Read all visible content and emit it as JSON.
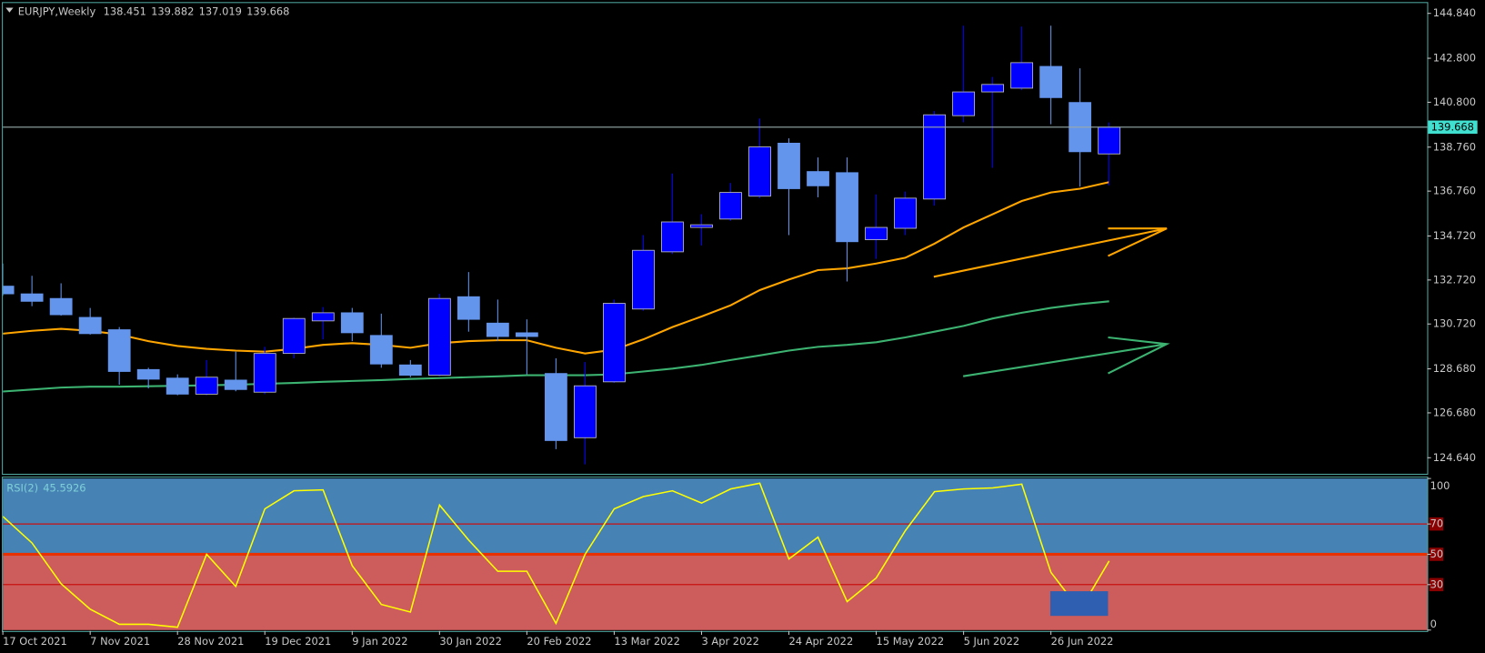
{
  "chart_data": [
    {
      "type": "candlestick",
      "title": "EURJPY,Weekly",
      "categories": [
        "17 Oct 2021",
        null,
        null,
        "7 Nov 2021",
        null,
        null,
        "28 Nov 2021",
        null,
        null,
        "19 Dec 2021",
        null,
        null,
        "9 Jan 2022",
        null,
        null,
        "30 Jan 2022",
        null,
        null,
        "20 Feb 2022",
        null,
        null,
        "13 Mar 2022",
        null,
        null,
        "3 Apr 2022",
        null,
        null,
        "24 Apr 2022",
        null,
        null,
        "15 May 2022",
        null,
        null,
        "5 Jun 2022",
        null,
        null,
        "26 Jun 2022",
        null,
        null
      ],
      "open": [
        132.44,
        132.09,
        131.88,
        131.02,
        130.46,
        128.65,
        128.26,
        127.53,
        128.17,
        127.62,
        129.38,
        130.86,
        131.23,
        130.2,
        128.86,
        128.39,
        131.96,
        130.76,
        130.32,
        128.47,
        125.55,
        128.09,
        131.4,
        134.0,
        135.11,
        135.49,
        136.53,
        138.94,
        137.65,
        137.6,
        134.55,
        135.07,
        136.4,
        140.19,
        141.27,
        141.44,
        142.43,
        140.79,
        138.451
      ],
      "high": [
        133.47,
        132.91,
        132.57,
        131.45,
        130.58,
        128.73,
        128.43,
        129.08,
        129.46,
        129.68,
        131.01,
        131.49,
        131.45,
        131.19,
        129.08,
        132.09,
        133.08,
        131.83,
        130.93,
        129.16,
        128.99,
        131.83,
        134.76,
        137.56,
        135.71,
        137.13,
        140.06,
        139.16,
        138.29,
        138.29,
        136.61,
        136.74,
        140.4,
        144.28,
        141.95,
        144.24,
        144.28,
        142.34,
        139.882
      ],
      "low": [
        132.0,
        131.53,
        131.1,
        130.24,
        127.96,
        127.79,
        127.48,
        127.48,
        127.66,
        127.53,
        129.16,
        130.02,
        129.94,
        128.73,
        128.3,
        128.34,
        130.37,
        129.94,
        128.43,
        125.03,
        124.34,
        128.04,
        131.32,
        133.9,
        134.29,
        135.41,
        136.44,
        134.76,
        136.48,
        132.65,
        133.68,
        134.76,
        136.1,
        139.89,
        137.82,
        141.35,
        139.8,
        136.96,
        137.019
      ],
      "close": [
        132.09,
        131.75,
        131.14,
        130.28,
        128.56,
        128.21,
        127.53,
        128.3,
        127.74,
        129.38,
        130.97,
        131.23,
        130.32,
        128.9,
        128.39,
        131.88,
        130.93,
        130.15,
        130.15,
        125.42,
        127.91,
        131.66,
        134.07,
        135.36,
        135.23,
        136.7,
        138.77,
        136.87,
        137.0,
        134.46,
        135.11,
        136.44,
        140.23,
        141.27,
        141.61,
        142.6,
        141.01,
        138.55,
        139.668
      ],
      "up_color": "#0000ff",
      "down_color": "#6495ed",
      "series": [
        {
          "color": "#ffa500",
          "values": [
            130.28,
            130.41,
            130.5,
            130.41,
            130.24,
            129.94,
            129.72,
            129.59,
            129.51,
            129.46,
            129.59,
            129.77,
            129.85,
            129.77,
            129.64,
            129.85,
            129.94,
            129.98,
            129.98,
            129.64,
            129.38,
            129.55,
            130.02,
            130.58,
            131.06,
            131.57,
            132.26,
            132.74,
            133.17,
            133.25,
            133.47,
            133.73,
            134.37,
            135.11,
            135.71,
            136.31,
            136.7,
            136.87,
            137.17
          ]
        },
        {
          "color": "#3cb371",
          "values": [
            127.65,
            127.74,
            127.83,
            127.87,
            127.87,
            127.89,
            127.91,
            127.93,
            127.96,
            128.0,
            128.04,
            128.09,
            128.13,
            128.17,
            128.22,
            128.26,
            128.3,
            128.34,
            128.39,
            128.39,
            128.39,
            128.43,
            128.56,
            128.69,
            128.86,
            129.08,
            129.29,
            129.51,
            129.68,
            129.77,
            129.89,
            130.11,
            130.37,
            130.63,
            130.97,
            131.23,
            131.45,
            131.62,
            131.75
          ]
        }
      ],
      "ylim": [
        123.91,
        145.31
      ],
      "yticks": [
        {
          "value": 144.84,
          "label": "144.840"
        },
        {
          "value": 142.8,
          "label": "142.800"
        },
        {
          "value": 140.8,
          "label": "140.800"
        },
        {
          "value": 138.76,
          "label": "138.760"
        },
        {
          "value": 136.76,
          "label": "136.760"
        },
        {
          "value": 134.72,
          "label": "134.720"
        },
        {
          "value": 132.72,
          "label": "132.720"
        },
        {
          "value": 130.72,
          "label": "130.720"
        },
        {
          "value": 128.68,
          "label": "128.680"
        },
        {
          "value": 126.68,
          "label": "126.680"
        },
        {
          "value": 124.64,
          "label": "124.640"
        }
      ]
    },
    {
      "type": "line",
      "title": "RSI(2)",
      "series": [
        {
          "color": "#ffff00",
          "values": [
            75.0,
            57.5,
            30.6,
            13.8,
            3.8,
            3.8,
            1.9,
            50.0,
            28.8,
            80.0,
            91.9,
            92.5,
            42.5,
            16.9,
            11.9,
            82.5,
            59.4,
            38.8,
            38.8,
            4.4,
            50.0,
            80.0,
            88.1,
            91.9,
            83.8,
            93.1,
            96.9,
            46.9,
            61.3,
            18.8,
            34.4,
            65.6,
            91.3,
            93.1,
            93.8,
            96.3,
            38.1,
            13.1,
            45.5926
          ]
        }
      ],
      "ylim": [
        0,
        100
      ],
      "yticks": [
        100,
        70,
        50,
        30,
        0
      ],
      "levels": [
        70,
        50,
        30
      ],
      "zone_split": 50,
      "color_above": "#4682b4",
      "color_below": "#cd5c5c"
    }
  ]
}
